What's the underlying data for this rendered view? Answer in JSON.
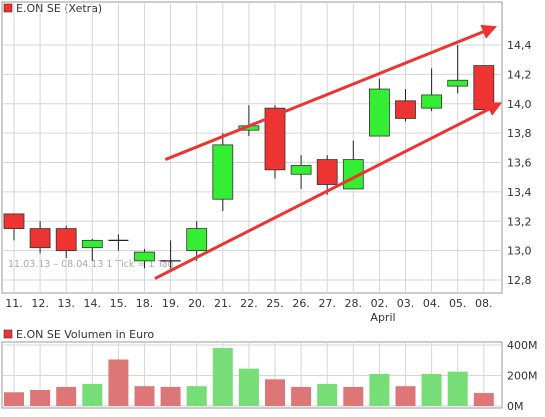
{
  "chart_data": [
    {
      "type": "candlestick",
      "title": "E.ON SE (Xetra)",
      "subtitle": "11.03.13 – 08.04.13   1 Tick = 1 Tag",
      "month_label": "April",
      "categories": [
        "11.",
        "12.",
        "13.",
        "14.",
        "15.",
        "18.",
        "19.",
        "20.",
        "21.",
        "22.",
        "25.",
        "26.",
        "27.",
        "28.",
        "02.",
        "03.",
        "04.",
        "05.",
        "08."
      ],
      "open": [
        13.25,
        13.15,
        13.15,
        13.02,
        13.07,
        12.93,
        12.93,
        13.0,
        13.35,
        13.82,
        13.97,
        13.52,
        13.62,
        13.42,
        13.78,
        14.02,
        13.97,
        14.12,
        14.26
      ],
      "close": [
        13.15,
        13.02,
        13.0,
        13.07,
        13.07,
        12.99,
        12.93,
        13.15,
        13.72,
        13.85,
        13.55,
        13.58,
        13.45,
        13.62,
        14.1,
        13.9,
        14.06,
        14.16,
        13.96
      ],
      "high": [
        13.25,
        13.2,
        13.17,
        13.08,
        13.11,
        13.01,
        13.07,
        13.2,
        13.8,
        13.99,
        13.99,
        13.65,
        13.65,
        13.75,
        14.17,
        14.1,
        14.24,
        14.4,
        14.26
      ],
      "low": [
        13.07,
        12.98,
        12.95,
        12.93,
        13.0,
        12.88,
        12.88,
        12.93,
        13.27,
        13.78,
        13.49,
        13.42,
        13.38,
        13.42,
        13.78,
        13.88,
        13.95,
        14.07,
        13.96
      ],
      "y_tick_labels": [
        "12,8",
        "13,0",
        "13,2",
        "13,4",
        "13,6",
        "13,8",
        "14,0",
        "14,2",
        "14,4"
      ],
      "y_ticks": [
        12.8,
        13.0,
        13.2,
        13.4,
        13.6,
        13.8,
        14.0,
        14.2,
        14.4
      ],
      "ylim": [
        12.7,
        14.55
      ],
      "trend_lines": [
        {
          "from_index": 5.8,
          "from_value": 13.62,
          "to_index": 18.4,
          "to_value": 14.52
        },
        {
          "from_index": 5.4,
          "from_value": 12.81,
          "to_index": 18.6,
          "to_value": 14.0
        }
      ],
      "colors": {
        "up": "#33ee33",
        "down": "#ee3333",
        "trend": "#ee3333",
        "grid": "#d6d6d6"
      }
    },
    {
      "type": "bar",
      "title": "E.ON SE Volumen in Euro",
      "categories": [
        "11.",
        "12.",
        "13.",
        "14.",
        "15.",
        "18.",
        "19.",
        "20.",
        "21.",
        "22.",
        "25.",
        "26.",
        "27.",
        "28.",
        "02.",
        "03.",
        "04.",
        "05.",
        "08."
      ],
      "values": [
        90,
        105,
        125,
        145,
        305,
        130,
        125,
        130,
        380,
        245,
        175,
        125,
        145,
        125,
        210,
        130,
        210,
        225,
        85
      ],
      "value_unit": "M",
      "bar_direction": [
        "down",
        "down",
        "down",
        "up",
        "down",
        "down",
        "down",
        "up",
        "up",
        "up",
        "down",
        "down",
        "up",
        "down",
        "up",
        "down",
        "up",
        "up",
        "down"
      ],
      "y_tick_labels": [
        "0M",
        "200M",
        "400M"
      ],
      "y_ticks": [
        0,
        200,
        400
      ],
      "ylim": [
        0,
        400
      ],
      "colors": {
        "up": "#77dd77",
        "down": "#dd7777",
        "grid": "#d6d6d6"
      }
    }
  ]
}
